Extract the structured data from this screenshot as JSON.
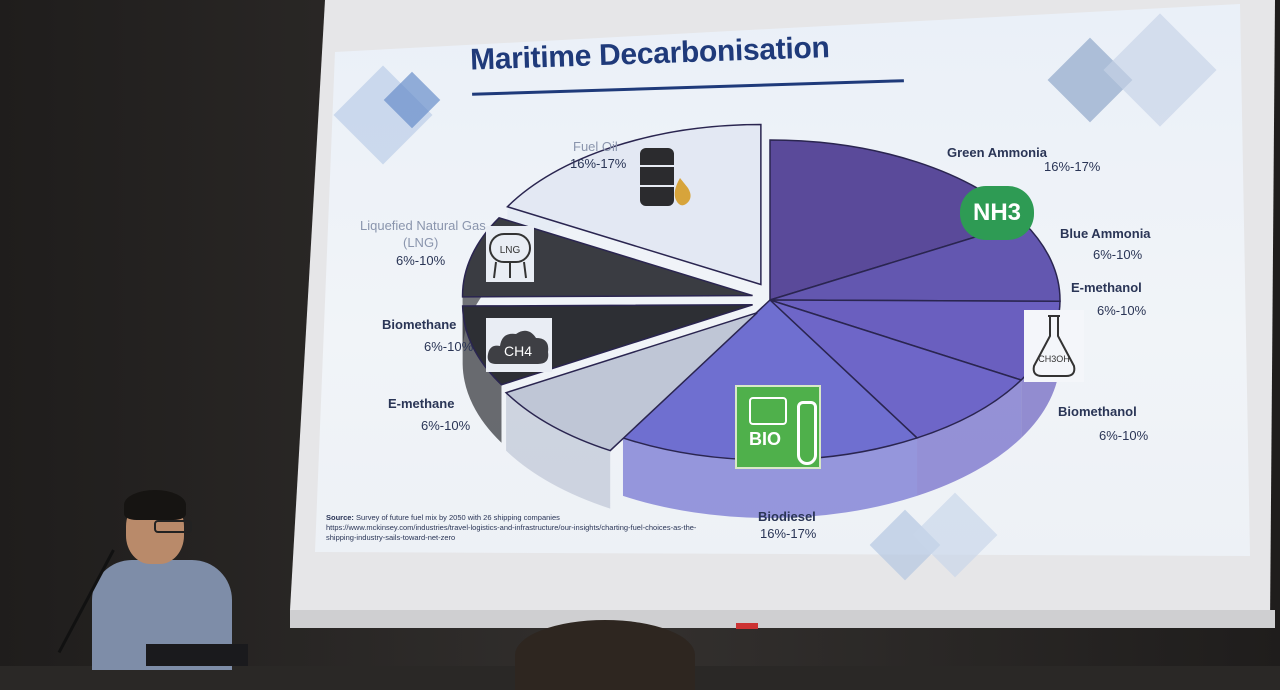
{
  "slide": {
    "title": "Maritime Decarbonisation",
    "source_label": "Source:",
    "source_text": "Survey of future fuel mix by 2050 with 26 shipping companies",
    "source_url_line1": "https://www.mckinsey.com/industries/travel-logistics-and-infrastructure/our-insights/charting-fuel-choices-as-the-",
    "source_url_line2": "shipping-industry-sails-toward-net-zero"
  },
  "icons": {
    "nh3": "NH3",
    "bio": "BIO",
    "ch3oh": "CH3OH",
    "ch4": "CH4",
    "lng": "LNG"
  },
  "chart_data": {
    "type": "pie",
    "title": "Maritime Decarbonisation",
    "slices": [
      {
        "label": "Green Ammonia",
        "range": "16%-17%",
        "value": 16.5,
        "color": "#5a4a9a"
      },
      {
        "label": "Blue Ammonia",
        "range": "6%-10%",
        "value": 8,
        "color": "#6357b0"
      },
      {
        "label": "E-methanol",
        "range": "6%-10%",
        "value": 8,
        "color": "#6a5fbf"
      },
      {
        "label": "Biomethanol",
        "range": "6%-10%",
        "value": 8,
        "color": "#6e66c8"
      },
      {
        "label": "Biodiesel",
        "range": "16%-17%",
        "value": 16.5,
        "color": "#6f6fd0"
      },
      {
        "label": "E-methane",
        "range": "6%-10%",
        "value": 8,
        "color": "#bfc6d6"
      },
      {
        "label": "Biomethane",
        "range": "6%-10%",
        "value": 8,
        "color": "#2d2f34"
      },
      {
        "label": "Liquefied Natural Gas (LNG)",
        "range": "6%-10%",
        "value": 8,
        "color": "#3a3c42"
      },
      {
        "label": "Fuel Oil",
        "range": "16%-17%",
        "value": 16.5,
        "color": "#e3e8f3"
      }
    ]
  }
}
